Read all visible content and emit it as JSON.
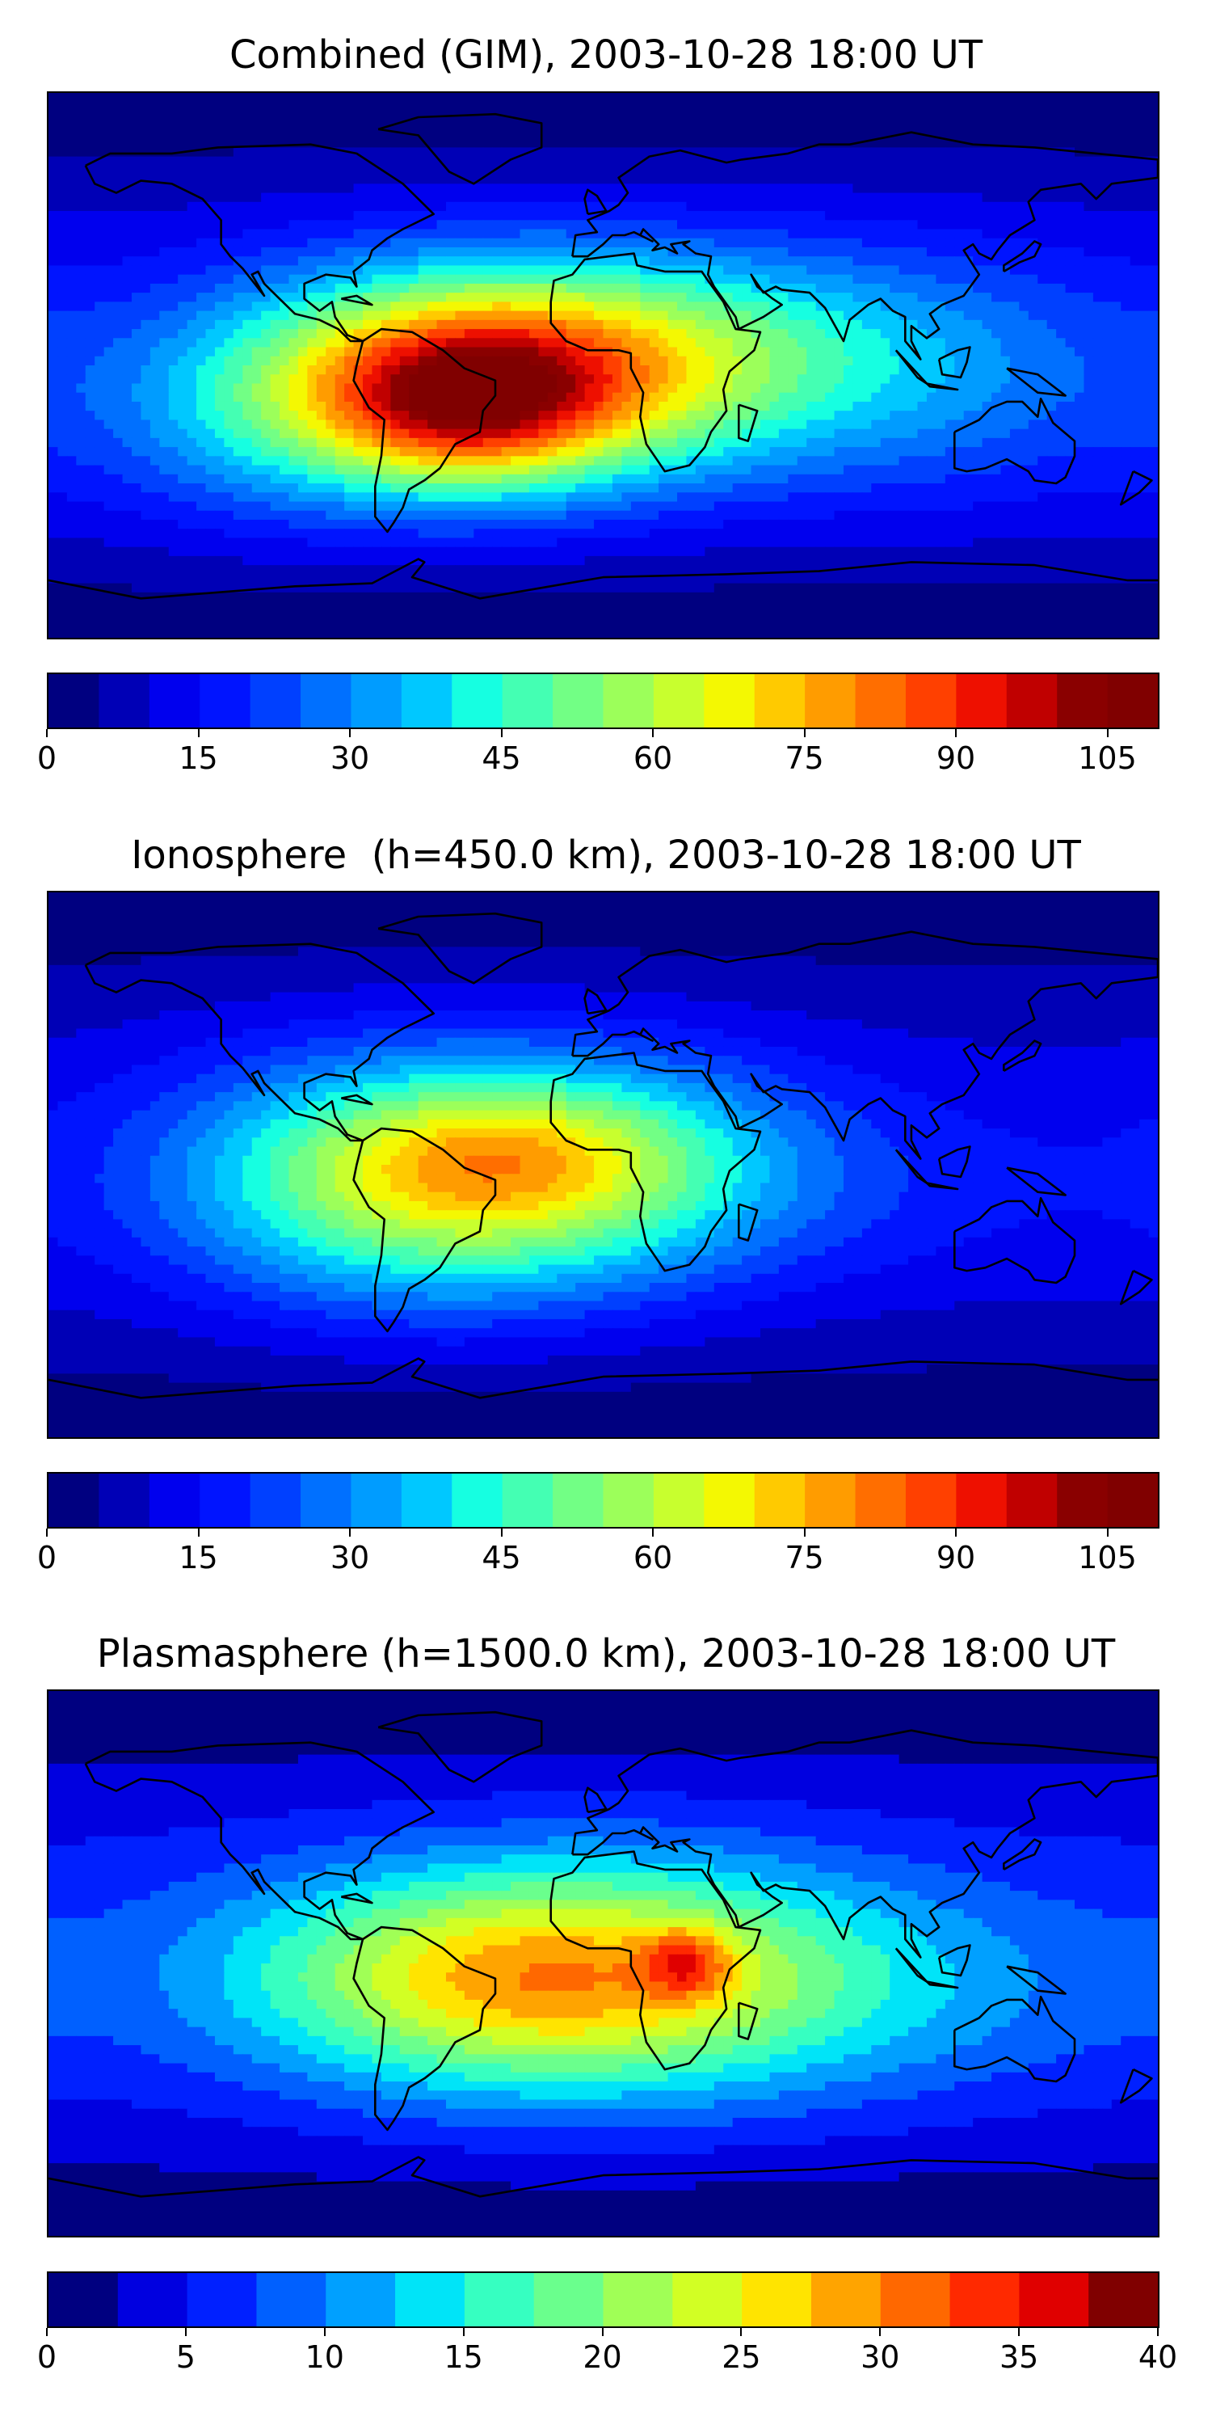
{
  "panels": [
    {
      "id": "combined",
      "title": "Combined (GIM), 2003-10-28 18:00 UT",
      "vmax": 110,
      "levels": 22,
      "ticks": [
        "0",
        "15",
        "30",
        "45",
        "60",
        "75",
        "90",
        "105"
      ],
      "tick_values": [
        0,
        15,
        30,
        45,
        60,
        75,
        90,
        105
      ],
      "blobs": [
        {
          "lon": -40,
          "lat": -5,
          "sx": 55,
          "sy": 25,
          "amp": 62
        },
        {
          "lon": -45,
          "lat": -15,
          "sx": 30,
          "sy": 18,
          "amp": 28
        },
        {
          "lon": 30,
          "lat": 5,
          "sx": 70,
          "sy": 25,
          "amp": 25
        },
        {
          "lon": -110,
          "lat": -20,
          "sx": 40,
          "sy": 25,
          "amp": 12
        },
        {
          "lon": 110,
          "lat": -10,
          "sx": 50,
          "sy": 30,
          "amp": 8
        }
      ],
      "base": 14
    },
    {
      "id": "ionosphere",
      "title": "Ionosphere  (h=450.0 km), 2003-10-28 18:00 UT",
      "vmax": 110,
      "levels": 22,
      "ticks": [
        "0",
        "15",
        "30",
        "45",
        "60",
        "75",
        "90",
        "105"
      ],
      "tick_values": [
        0,
        15,
        30,
        45,
        60,
        75,
        90,
        105
      ],
      "blobs": [
        {
          "lon": -55,
          "lat": -5,
          "sx": 55,
          "sy": 28,
          "amp": 52
        },
        {
          "lon": -30,
          "lat": 5,
          "sx": 35,
          "sy": 15,
          "amp": 12
        },
        {
          "lon": 15,
          "lat": 0,
          "sx": 45,
          "sy": 25,
          "amp": 18
        },
        {
          "lon": 100,
          "lat": -10,
          "sx": 50,
          "sy": 25,
          "amp": 4
        }
      ],
      "base": 12
    },
    {
      "id": "plasmasphere",
      "title": "Plasmasphere (h=1500.0 km), 2003-10-28 18:00 UT",
      "vmax": 40,
      "levels": 16,
      "ticks": [
        "0",
        "5",
        "10",
        "15",
        "20",
        "25",
        "30",
        "35",
        "40"
      ],
      "tick_values": [
        0,
        5,
        10,
        15,
        20,
        25,
        30,
        35,
        40
      ],
      "blobs": [
        {
          "lon": -40,
          "lat": -5,
          "sx": 60,
          "sy": 25,
          "amp": 15
        },
        {
          "lon": 15,
          "lat": -5,
          "sx": 60,
          "sy": 28,
          "amp": 12
        },
        {
          "lon": 27,
          "lat": 0,
          "sx": 10,
          "sy": 8,
          "amp": 10
        },
        {
          "lon": 110,
          "lat": -10,
          "sx": 50,
          "sy": 25,
          "amp": 3
        }
      ],
      "base": 6
    }
  ],
  "jet_colors": [
    "#000080",
    "#0000b6",
    "#0000ee",
    "#0014ff",
    "#0040ff",
    "#0070ff",
    "#009cff",
    "#00c8ff",
    "#16ffe1",
    "#44ffb3",
    "#72ff85",
    "#9cff5a",
    "#c8ff2e",
    "#f4f802",
    "#ffca00",
    "#ff9c00",
    "#ff6e00",
    "#ff4000",
    "#ee1000",
    "#c00000",
    "#8a0000",
    "#800000"
  ],
  "jet_colors_16": [
    "#000080",
    "#0000e0",
    "#0020ff",
    "#0060ff",
    "#00a0ff",
    "#00e4f8",
    "#36ffc1",
    "#6aff8d",
    "#a0ff56",
    "#d2ff24",
    "#ffe400",
    "#ffa400",
    "#ff6800",
    "#ff2900",
    "#e00000",
    "#800000"
  ]
}
